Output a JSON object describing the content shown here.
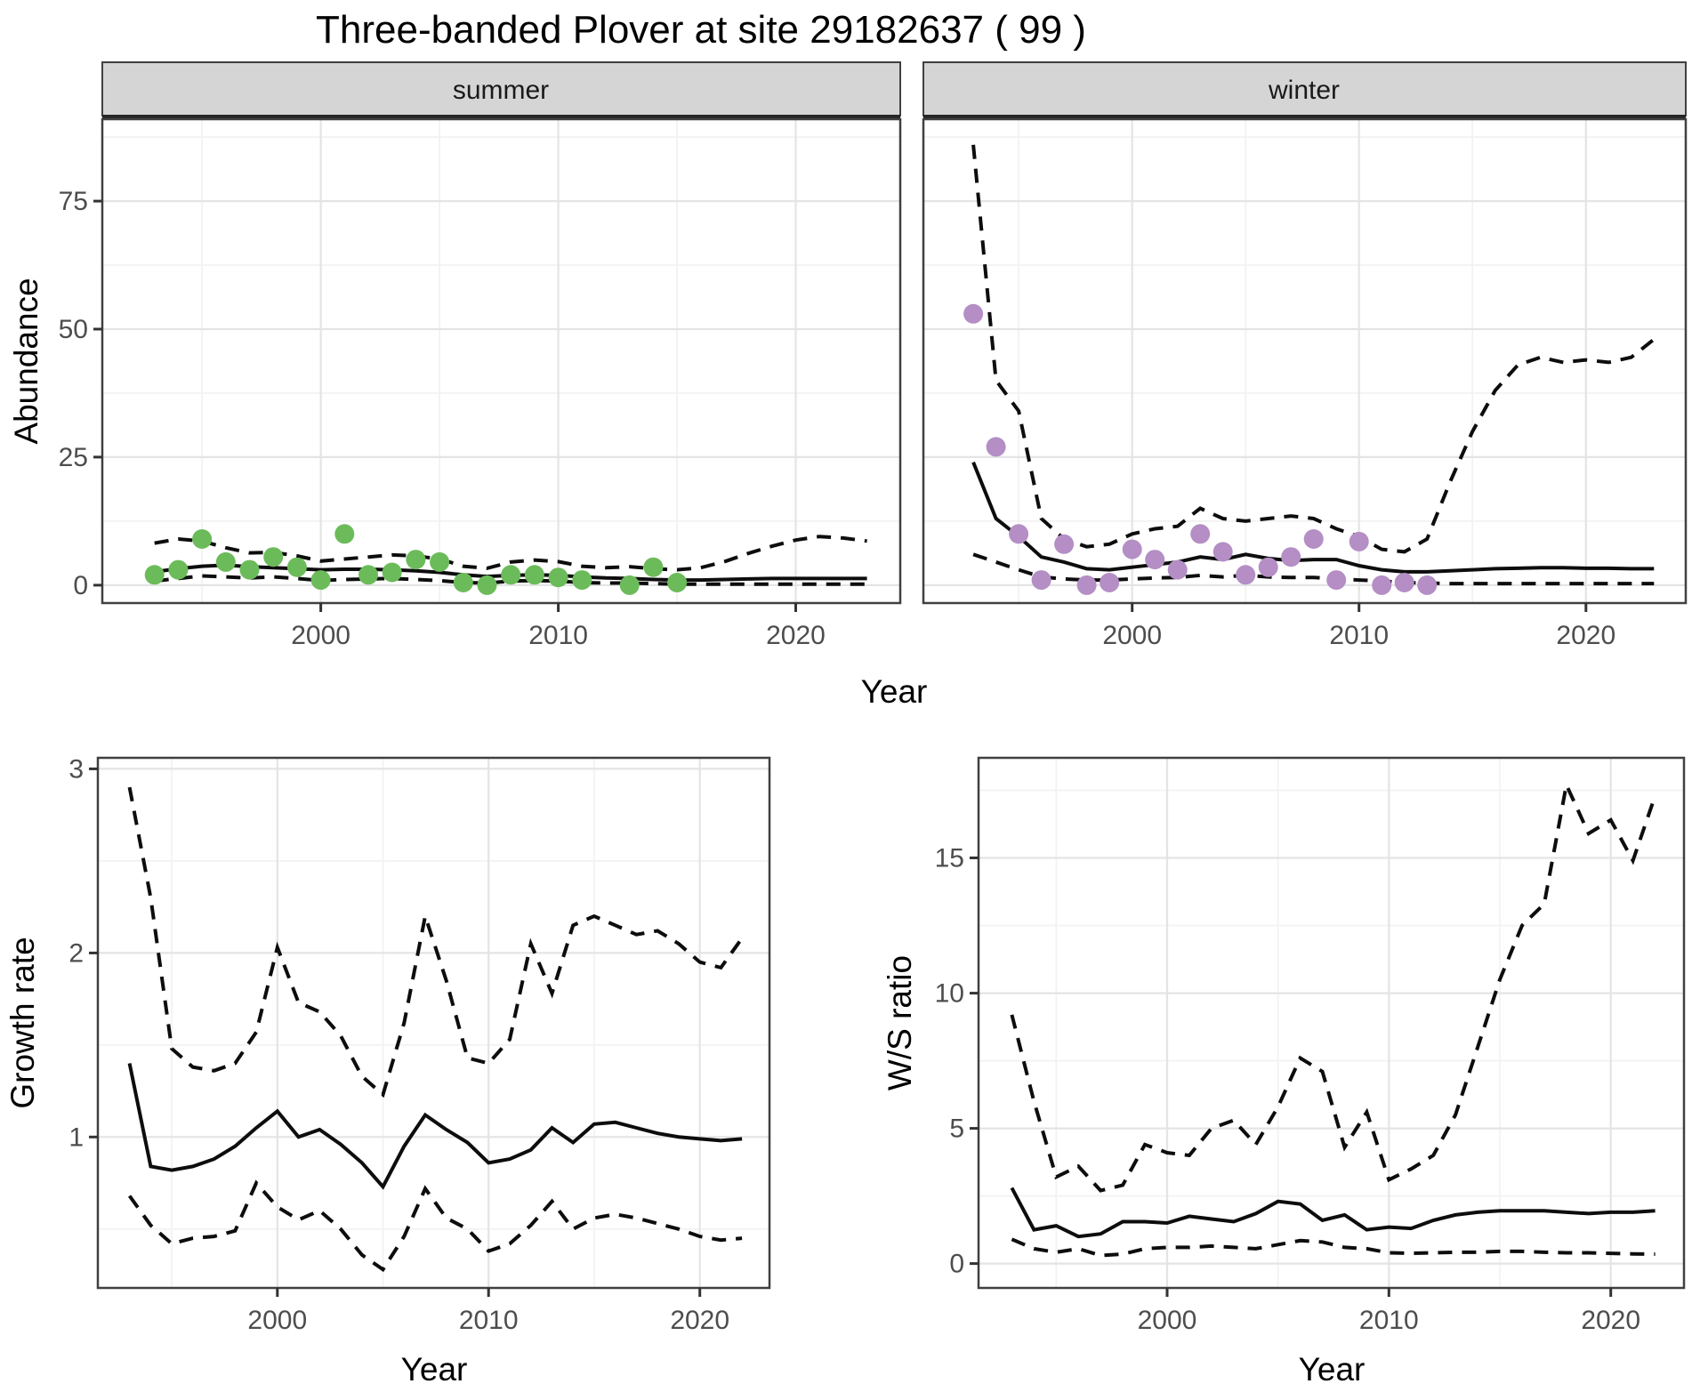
{
  "title": "Three-banded Plover at site 29182637 ( 99 )",
  "facets": {
    "summer": "summer",
    "winter": "winter"
  },
  "axes": {
    "year": "Year",
    "abundance": "Abundance",
    "growth": "Growth rate",
    "ws": "W/S ratio"
  },
  "colors": {
    "summer_point": "#6CBB5A",
    "winter_point": "#B48EC5",
    "line": "#0D0D0D",
    "strip_bg": "#D5D5D5",
    "strip_edge": "#262626",
    "grid_major": "#E4E4E4",
    "grid_minor": "#F2F2F2",
    "axis_text": "#4D4D4D",
    "panel_border": "#404040",
    "background": "#FFFFFF"
  },
  "chart_data": [
    {
      "id": "abundance-summer",
      "type": "line",
      "facet": "summer",
      "xlabel": "Year",
      "ylabel": "Abundance",
      "xlim": [
        1990.8,
        2024.4
      ],
      "ylim": [
        -3.5,
        91
      ],
      "xticks": [
        2000,
        2010,
        2020
      ],
      "xminor": [
        1995,
        2005,
        2015
      ],
      "yticks": [
        0,
        25,
        50,
        75
      ],
      "yminor": [
        12.5,
        37.5,
        62.5,
        87.5
      ],
      "grid": true,
      "legend": "none",
      "point_color": "#6CBB5A",
      "points": {
        "x": [
          1993,
          1994,
          1995,
          1996,
          1997,
          1998,
          1999,
          2000,
          2001,
          2002,
          2003,
          2004,
          2005,
          2006,
          2007,
          2008,
          2009,
          2010,
          2011,
          2013,
          2014,
          2015
        ],
        "y": [
          2,
          3,
          9,
          4.5,
          3,
          5.5,
          3.5,
          1,
          10,
          2,
          2.5,
          5,
          4.5,
          0.5,
          0,
          2,
          2,
          1.5,
          1,
          0,
          3.5,
          0.5
        ]
      },
      "series": [
        {
          "name": "upper-ci",
          "style": "dashed",
          "x": [
            1993,
            1994,
            1995,
            1996,
            1997,
            1998,
            1999,
            2000,
            2001,
            2002,
            2003,
            2004,
            2005,
            2006,
            2007,
            2008,
            2009,
            2010,
            2011,
            2012,
            2013,
            2014,
            2015,
            2016,
            2017,
            2018,
            2019,
            2020,
            2021,
            2022,
            2023
          ],
          "y": [
            8.2,
            9.0,
            8.6,
            7.3,
            6.3,
            6.4,
            5.7,
            4.7,
            5.1,
            5.5,
            5.9,
            5.7,
            5.1,
            3.7,
            3.3,
            4.5,
            4.9,
            4.6,
            3.7,
            3.4,
            3.6,
            3.2,
            3.0,
            3.4,
            4.6,
            6.2,
            7.6,
            8.8,
            9.5,
            9.2,
            8.6
          ]
        },
        {
          "name": "lower-ci",
          "style": "dashed",
          "x": [
            1993,
            1994,
            1995,
            1996,
            1997,
            1998,
            1999,
            2000,
            2001,
            2002,
            2003,
            2004,
            2005,
            2006,
            2007,
            2008,
            2009,
            2010,
            2011,
            2012,
            2013,
            2014,
            2015,
            2016,
            2017,
            2018,
            2019,
            2020,
            2021,
            2022,
            2023
          ],
          "y": [
            0.8,
            1.3,
            1.8,
            1.6,
            1.4,
            1.6,
            1.3,
            0.9,
            1.1,
            1.2,
            1.3,
            1.1,
            0.9,
            0.5,
            0.4,
            0.8,
            0.9,
            0.8,
            0.5,
            0.4,
            0.4,
            0.3,
            0.2,
            0.2,
            0.2,
            0.2,
            0.2,
            0.2,
            0.2,
            0.2,
            0.2
          ]
        },
        {
          "name": "fit",
          "style": "solid",
          "x": [
            1993,
            1994,
            1995,
            1996,
            1997,
            1998,
            1999,
            2000,
            2001,
            2002,
            2003,
            2004,
            2005,
            2006,
            2007,
            2008,
            2009,
            2010,
            2011,
            2012,
            2013,
            2014,
            2015,
            2016,
            2017,
            2018,
            2019,
            2020,
            2021,
            2022,
            2023
          ],
          "y": [
            2.6,
            3.2,
            3.7,
            3.9,
            3.6,
            3.4,
            3.2,
            3.0,
            3.1,
            3.1,
            3.0,
            2.8,
            2.5,
            2.0,
            1.7,
            1.9,
            2.0,
            1.9,
            1.6,
            1.4,
            1.3,
            1.1,
            1.0,
            1.0,
            1.1,
            1.2,
            1.3,
            1.3,
            1.3,
            1.3,
            1.3
          ]
        }
      ]
    },
    {
      "id": "abundance-winter",
      "type": "line",
      "facet": "winter",
      "xlabel": "Year",
      "ylabel": "Abundance",
      "xlim": [
        1990.8,
        2024.4
      ],
      "ylim": [
        -3.5,
        91
      ],
      "xticks": [
        2000,
        2010,
        2020
      ],
      "xminor": [
        1995,
        2005,
        2015
      ],
      "yticks": [
        0,
        25,
        50,
        75
      ],
      "yminor": [
        12.5,
        37.5,
        62.5,
        87.5
      ],
      "grid": true,
      "legend": "none",
      "point_color": "#B48EC5",
      "points": {
        "x": [
          1993,
          1994,
          1995,
          1996,
          1997,
          1998,
          1999,
          2000,
          2001,
          2002,
          2003,
          2004,
          2005,
          2006,
          2007,
          2008,
          2009,
          2010,
          2011,
          2012,
          2013
        ],
        "y": [
          53,
          27,
          10,
          1,
          8,
          0,
          0.5,
          7,
          5,
          3,
          10,
          6.5,
          2,
          3.5,
          5.5,
          9,
          1,
          8.5,
          0,
          0.5,
          0
        ]
      },
      "series": [
        {
          "name": "upper-ci",
          "style": "dashed",
          "x": [
            1993,
            1994,
            1995,
            1996,
            1997,
            1998,
            1999,
            2000,
            2001,
            2002,
            2003,
            2004,
            2005,
            2006,
            2007,
            2008,
            2009,
            2010,
            2011,
            2012,
            2013,
            2014,
            2015,
            2016,
            2017,
            2018,
            2019,
            2020,
            2021,
            2022,
            2023
          ],
          "y": [
            86,
            40,
            34,
            13,
            9,
            7.5,
            8,
            10,
            11,
            11.5,
            15,
            13,
            12.5,
            13,
            13.5,
            13,
            11,
            9.5,
            7,
            6.5,
            9,
            20,
            30,
            38,
            43,
            44.5,
            43.5,
            44,
            43.5,
            44.5,
            48
          ]
        },
        {
          "name": "lower-ci",
          "style": "dashed",
          "x": [
            1993,
            1994,
            1995,
            1996,
            1997,
            1998,
            1999,
            2000,
            2001,
            2002,
            2003,
            2004,
            2005,
            2006,
            2007,
            2008,
            2009,
            2010,
            2011,
            2012,
            2013,
            2014,
            2015,
            2016,
            2017,
            2018,
            2019,
            2020,
            2021,
            2022,
            2023
          ],
          "y": [
            6,
            4.5,
            3,
            1.6,
            1.2,
            1,
            1,
            1.2,
            1.4,
            1.5,
            1.9,
            1.6,
            1.9,
            1.6,
            1.5,
            1.5,
            1.2,
            1,
            0.8,
            0.5,
            0.4,
            0.3,
            0.3,
            0.3,
            0.3,
            0.3,
            0.3,
            0.3,
            0.3,
            0.3,
            0.3
          ]
        },
        {
          "name": "fit",
          "style": "solid",
          "x": [
            1993,
            1994,
            1995,
            1996,
            1997,
            1998,
            1999,
            2000,
            2001,
            2002,
            2003,
            2004,
            2005,
            2006,
            2007,
            2008,
            2009,
            2010,
            2011,
            2012,
            2013,
            2014,
            2015,
            2016,
            2017,
            2018,
            2019,
            2020,
            2021,
            2022,
            2023
          ],
          "y": [
            24,
            13,
            9.5,
            5.5,
            4.5,
            3.2,
            3.0,
            3.5,
            4.0,
            4.5,
            5.5,
            5.0,
            6.0,
            5.2,
            4.8,
            5.0,
            5.0,
            3.8,
            3.0,
            2.6,
            2.6,
            2.8,
            3.0,
            3.2,
            3.3,
            3.4,
            3.4,
            3.3,
            3.3,
            3.2,
            3.2
          ]
        }
      ]
    },
    {
      "id": "growth-rate",
      "type": "line",
      "facet": null,
      "xlabel": "Year",
      "ylabel": "Growth rate",
      "xlim": [
        1991.5,
        2023.3
      ],
      "ylim": [
        0.18,
        3.06
      ],
      "xticks": [
        2000,
        2010,
        2020
      ],
      "xminor": [
        1995,
        2005,
        2015
      ],
      "yticks": [
        1,
        2,
        3
      ],
      "yminor": [
        0.5,
        1.5,
        2.5
      ],
      "grid": true,
      "legend": "none",
      "series": [
        {
          "name": "upper-ci",
          "style": "dashed",
          "x": [
            1993,
            1994,
            1995,
            1996,
            1997,
            1998,
            1999,
            2000,
            2001,
            2002,
            2003,
            2004,
            2005,
            2006,
            2007,
            2008,
            2009,
            2010,
            2011,
            2012,
            2013,
            2014,
            2015,
            2016,
            2017,
            2018,
            2019,
            2020,
            2021,
            2022
          ],
          "y": [
            2.9,
            2.3,
            1.48,
            1.38,
            1.36,
            1.4,
            1.57,
            2.03,
            1.73,
            1.68,
            1.55,
            1.33,
            1.23,
            1.62,
            2.2,
            1.85,
            1.43,
            1.4,
            1.53,
            2.05,
            1.78,
            2.15,
            2.2,
            2.15,
            2.1,
            2.12,
            2.05,
            1.95,
            1.92,
            2.08
          ]
        },
        {
          "name": "lower-ci",
          "style": "dashed",
          "x": [
            1993,
            1994,
            1995,
            1996,
            1997,
            1998,
            1999,
            2000,
            2001,
            2002,
            2003,
            2004,
            2005,
            2006,
            2007,
            2008,
            2009,
            2010,
            2011,
            2012,
            2013,
            2014,
            2015,
            2016,
            2017,
            2018,
            2019,
            2020,
            2021,
            2022
          ],
          "y": [
            0.68,
            0.52,
            0.42,
            0.45,
            0.46,
            0.49,
            0.75,
            0.62,
            0.55,
            0.6,
            0.5,
            0.36,
            0.28,
            0.46,
            0.72,
            0.56,
            0.5,
            0.38,
            0.42,
            0.52,
            0.65,
            0.5,
            0.56,
            0.58,
            0.56,
            0.53,
            0.5,
            0.46,
            0.44,
            0.45
          ]
        },
        {
          "name": "fit",
          "style": "solid",
          "x": [
            1993,
            1994,
            1995,
            1996,
            1997,
            1998,
            1999,
            2000,
            2001,
            2002,
            2003,
            2004,
            2005,
            2006,
            2007,
            2008,
            2009,
            2010,
            2011,
            2012,
            2013,
            2014,
            2015,
            2016,
            2017,
            2018,
            2019,
            2020,
            2021,
            2022
          ],
          "y": [
            1.4,
            0.84,
            0.82,
            0.84,
            0.88,
            0.95,
            1.05,
            1.14,
            1.0,
            1.04,
            0.96,
            0.86,
            0.73,
            0.95,
            1.12,
            1.04,
            0.97,
            0.86,
            0.88,
            0.93,
            1.05,
            0.97,
            1.07,
            1.08,
            1.05,
            1.02,
            1.0,
            0.99,
            0.98,
            0.99
          ]
        }
      ]
    },
    {
      "id": "ws-ratio",
      "type": "line",
      "facet": null,
      "xlabel": "Year",
      "ylabel": "W/S ratio",
      "xlim": [
        1991.5,
        2023.3
      ],
      "ylim": [
        -0.9,
        18.7
      ],
      "xticks": [
        2000,
        2010,
        2020
      ],
      "xminor": [
        1995,
        2005,
        2015
      ],
      "yticks": [
        0,
        5,
        10,
        15
      ],
      "yminor": [
        2.5,
        7.5,
        12.5,
        17.5
      ],
      "grid": true,
      "legend": "none",
      "series": [
        {
          "name": "upper-ci",
          "style": "dashed",
          "x": [
            1993,
            1994,
            1995,
            1996,
            1997,
            1998,
            1999,
            2000,
            2001,
            2002,
            2003,
            2004,
            2005,
            2006,
            2007,
            2008,
            2009,
            2010,
            2011,
            2012,
            2013,
            2014,
            2015,
            2016,
            2017,
            2018,
            2019,
            2020,
            2021,
            2022
          ],
          "y": [
            9.2,
            6.0,
            3.2,
            3.6,
            2.7,
            2.9,
            4.4,
            4.1,
            4.0,
            5.0,
            5.3,
            4.4,
            5.8,
            7.6,
            7.1,
            4.3,
            5.6,
            3.1,
            3.5,
            4.0,
            5.5,
            8.0,
            10.5,
            12.5,
            13.3,
            17.7,
            15.9,
            16.4,
            14.9,
            17.3
          ]
        },
        {
          "name": "lower-ci",
          "style": "dashed",
          "x": [
            1993,
            1994,
            1995,
            1996,
            1997,
            1998,
            1999,
            2000,
            2001,
            2002,
            2003,
            2004,
            2005,
            2006,
            2007,
            2008,
            2009,
            2010,
            2011,
            2012,
            2013,
            2014,
            2015,
            2016,
            2017,
            2018,
            2019,
            2020,
            2021,
            2022
          ],
          "y": [
            0.9,
            0.55,
            0.42,
            0.55,
            0.3,
            0.35,
            0.55,
            0.6,
            0.6,
            0.65,
            0.6,
            0.55,
            0.7,
            0.85,
            0.8,
            0.6,
            0.55,
            0.4,
            0.38,
            0.4,
            0.42,
            0.42,
            0.45,
            0.45,
            0.42,
            0.4,
            0.4,
            0.38,
            0.36,
            0.35
          ]
        },
        {
          "name": "fit",
          "style": "solid",
          "x": [
            1993,
            1994,
            1995,
            1996,
            1997,
            1998,
            1999,
            2000,
            2001,
            2002,
            2003,
            2004,
            2005,
            2006,
            2007,
            2008,
            2009,
            2010,
            2011,
            2012,
            2013,
            2014,
            2015,
            2016,
            2017,
            2018,
            2019,
            2020,
            2021,
            2022
          ],
          "y": [
            2.8,
            1.25,
            1.4,
            1.0,
            1.1,
            1.55,
            1.55,
            1.5,
            1.75,
            1.65,
            1.55,
            1.85,
            2.3,
            2.2,
            1.6,
            1.8,
            1.25,
            1.35,
            1.3,
            1.6,
            1.8,
            1.9,
            1.95,
            1.95,
            1.95,
            1.9,
            1.85,
            1.9,
            1.9,
            1.95
          ]
        }
      ]
    }
  ]
}
